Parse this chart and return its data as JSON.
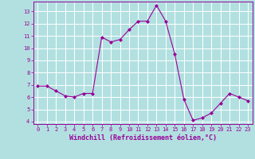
{
  "x": [
    0,
    1,
    2,
    3,
    4,
    5,
    6,
    7,
    8,
    9,
    10,
    11,
    12,
    13,
    14,
    15,
    16,
    17,
    18,
    19,
    20,
    21,
    22,
    23
  ],
  "y": [
    6.9,
    6.9,
    6.5,
    6.1,
    6.0,
    6.3,
    6.3,
    10.9,
    10.5,
    10.7,
    11.5,
    12.2,
    12.2,
    13.5,
    12.2,
    9.5,
    5.8,
    4.1,
    4.3,
    4.7,
    5.5,
    6.3,
    6.0,
    5.7
  ],
  "line_color": "#990099",
  "marker": "D",
  "marker_size": 2.0,
  "bg_color": "#b2e0e0",
  "grid_color": "#d0e8e8",
  "xlabel": "Windchill (Refroidissement éolien,°C)",
  "xlim": [
    -0.5,
    23.5
  ],
  "ylim": [
    3.8,
    13.8
  ],
  "yticks": [
    4,
    5,
    6,
    7,
    8,
    9,
    10,
    11,
    12,
    13
  ],
  "xticks": [
    0,
    1,
    2,
    3,
    4,
    5,
    6,
    7,
    8,
    9,
    10,
    11,
    12,
    13,
    14,
    15,
    16,
    17,
    18,
    19,
    20,
    21,
    22,
    23
  ],
  "tick_color": "#990099",
  "label_color": "#990099",
  "spine_color": "#990099",
  "tick_fontsize": 5.0,
  "xlabel_fontsize": 6.0
}
